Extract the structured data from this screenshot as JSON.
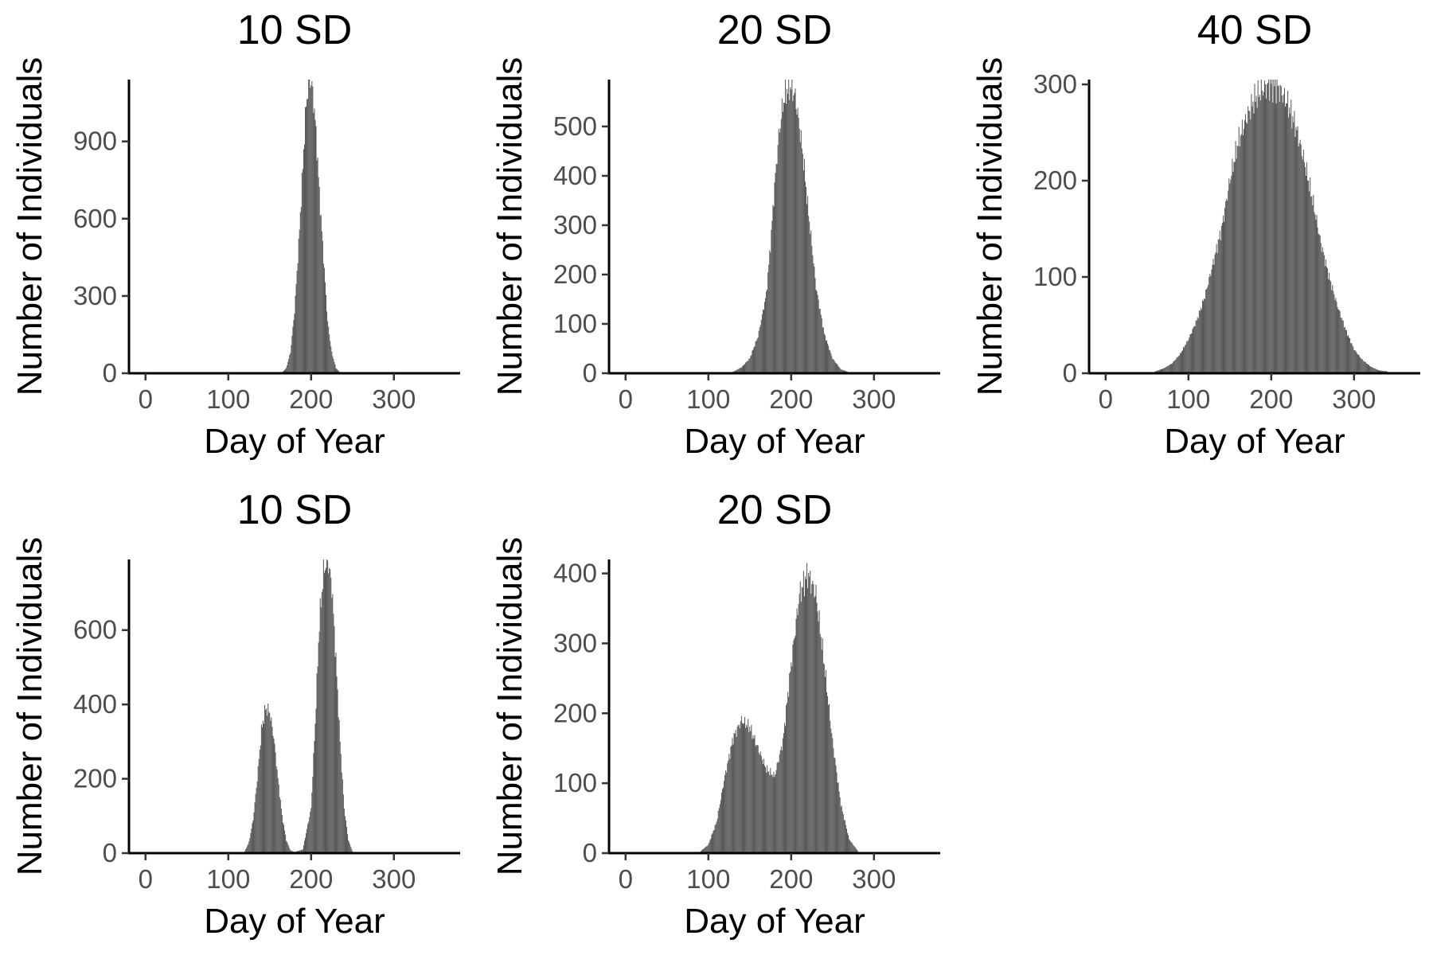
{
  "colors": {
    "bar": "#595959",
    "axis": "#000000",
    "tick_text": "#4d4d4d"
  },
  "chart_data": [
    {
      "type": "bar",
      "title": "10 SD",
      "xlabel": "Day of Year",
      "ylabel": "Number of Individuals",
      "xlim": [
        -20,
        380
      ],
      "ylim": [
        0,
        1140
      ],
      "xticks": [
        0,
        100,
        200,
        300
      ],
      "yticks": [
        0,
        300,
        600,
        900
      ],
      "grid": false,
      "x": [
        165,
        170,
        175,
        180,
        185,
        190,
        192,
        194,
        196,
        198,
        200,
        202,
        204,
        206,
        208,
        210,
        215,
        220,
        225,
        230,
        235
      ],
      "values": [
        3,
        20,
        80,
        240,
        500,
        800,
        930,
        1040,
        1100,
        1140,
        1130,
        1090,
        1020,
        930,
        820,
        700,
        450,
        200,
        80,
        20,
        3
      ]
    },
    {
      "type": "bar",
      "title": "20 SD",
      "xlabel": "Day of Year",
      "ylabel": "Number of Individuals",
      "xlim": [
        -20,
        380
      ],
      "ylim": [
        0,
        595
      ],
      "xticks": [
        0,
        100,
        200,
        300
      ],
      "yticks": [
        0,
        100,
        200,
        300,
        400,
        500
      ],
      "grid": false,
      "x": [
        130,
        140,
        150,
        160,
        170,
        175,
        180,
        185,
        190,
        195,
        200,
        205,
        210,
        215,
        220,
        225,
        230,
        240,
        250,
        260,
        270
      ],
      "values": [
        3,
        12,
        30,
        75,
        160,
        260,
        380,
        480,
        545,
        575,
        580,
        560,
        500,
        430,
        340,
        260,
        175,
        80,
        30,
        8,
        2
      ]
    },
    {
      "type": "bar",
      "title": "40 SD",
      "xlabel": "Day of Year",
      "ylabel": "Number of Individuals",
      "xlim": [
        -20,
        380
      ],
      "ylim": [
        0,
        305
      ],
      "xticks": [
        0,
        100,
        200,
        300
      ],
      "yticks": [
        0,
        100,
        200,
        300
      ],
      "grid": false,
      "x": [
        60,
        70,
        80,
        90,
        100,
        110,
        120,
        130,
        140,
        150,
        160,
        170,
        180,
        190,
        200,
        210,
        220,
        230,
        240,
        250,
        260,
        270,
        280,
        290,
        300,
        310,
        320,
        330,
        340
      ],
      "values": [
        2,
        5,
        10,
        20,
        35,
        55,
        80,
        115,
        150,
        200,
        240,
        265,
        285,
        295,
        300,
        295,
        280,
        255,
        220,
        180,
        135,
        100,
        70,
        45,
        25,
        14,
        7,
        3,
        2
      ]
    },
    {
      "type": "bar",
      "title": "10 SD",
      "xlabel": "Day of Year",
      "ylabel": "Number of Individuals",
      "xlim": [
        -20,
        380
      ],
      "ylim": [
        0,
        790
      ],
      "xticks": [
        0,
        100,
        200,
        300
      ],
      "yticks": [
        0,
        200,
        400,
        600
      ],
      "grid": false,
      "x": [
        120,
        125,
        130,
        135,
        140,
        145,
        150,
        155,
        160,
        165,
        170,
        175,
        180,
        190,
        200,
        205,
        210,
        215,
        220,
        225,
        230,
        235,
        240,
        245,
        250
      ],
      "values": [
        5,
        30,
        90,
        200,
        330,
        390,
        380,
        310,
        200,
        100,
        35,
        8,
        3,
        10,
        120,
        350,
        620,
        760,
        790,
        720,
        520,
        300,
        120,
        35,
        5
      ]
    },
    {
      "type": "bar",
      "title": "20 SD",
      "xlabel": "Day of Year",
      "ylabel": "Number of Individuals",
      "xlim": [
        -20,
        380
      ],
      "ylim": [
        0,
        420
      ],
      "xticks": [
        0,
        100,
        200,
        300
      ],
      "yticks": [
        0,
        100,
        200,
        300,
        400
      ],
      "grid": false,
      "x": [
        90,
        100,
        110,
        120,
        130,
        140,
        150,
        160,
        170,
        180,
        190,
        200,
        210,
        220,
        230,
        240,
        250,
        260,
        270,
        280
      ],
      "values": [
        2,
        12,
        45,
        110,
        165,
        190,
        180,
        150,
        120,
        110,
        160,
        270,
        370,
        400,
        370,
        270,
        160,
        70,
        20,
        4
      ]
    }
  ]
}
